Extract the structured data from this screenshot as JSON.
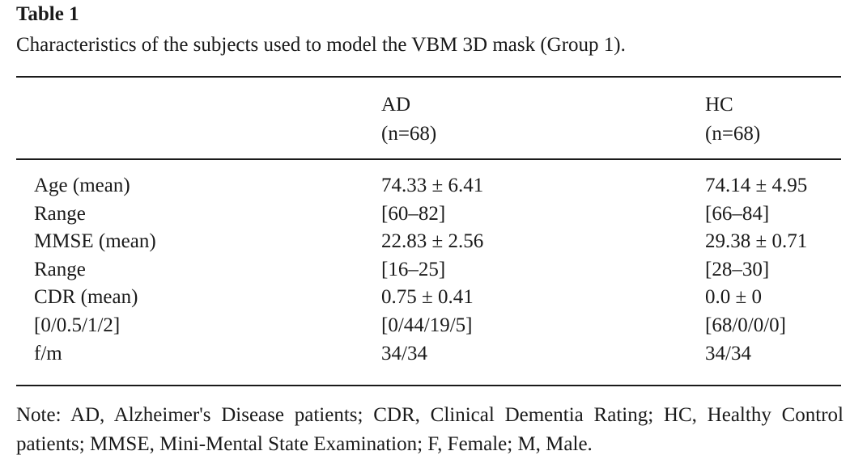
{
  "table": {
    "title": "Table 1",
    "caption": "Characteristics of the subjects used to model the VBM 3D mask (Group 1).",
    "columns": [
      {
        "name": "AD",
        "n": "(n=68)"
      },
      {
        "name": "HC",
        "n": "(n=68)"
      }
    ],
    "rows": [
      {
        "label": "Age (mean)",
        "ad": "74.33 ± 6.41",
        "hc": "74.14 ± 4.95"
      },
      {
        "label": "Range",
        "ad": "[60–82]",
        "hc": "[66–84]"
      },
      {
        "label": "MMSE (mean)",
        "ad": "22.83 ± 2.56",
        "hc": "29.38 ± 0.71"
      },
      {
        "label": "Range",
        "ad": "[16–25]",
        "hc": "[28–30]"
      },
      {
        "label": "CDR (mean)",
        "ad": "0.75 ± 0.41",
        "hc": "0.0 ± 0"
      },
      {
        "label": "[0/0.5/1/2]",
        "ad": "[0/44/19/5]",
        "hc": "[68/0/0/0]"
      },
      {
        "label": "f/m",
        "ad": "34/34",
        "hc": "34/34"
      }
    ],
    "note": "Note: AD, Alzheimer's Disease patients; CDR, Clinical Dementia Rating; HC, Healthy Control patients; MMSE, Mini-Mental State Examination; F, Female; M, Male."
  }
}
